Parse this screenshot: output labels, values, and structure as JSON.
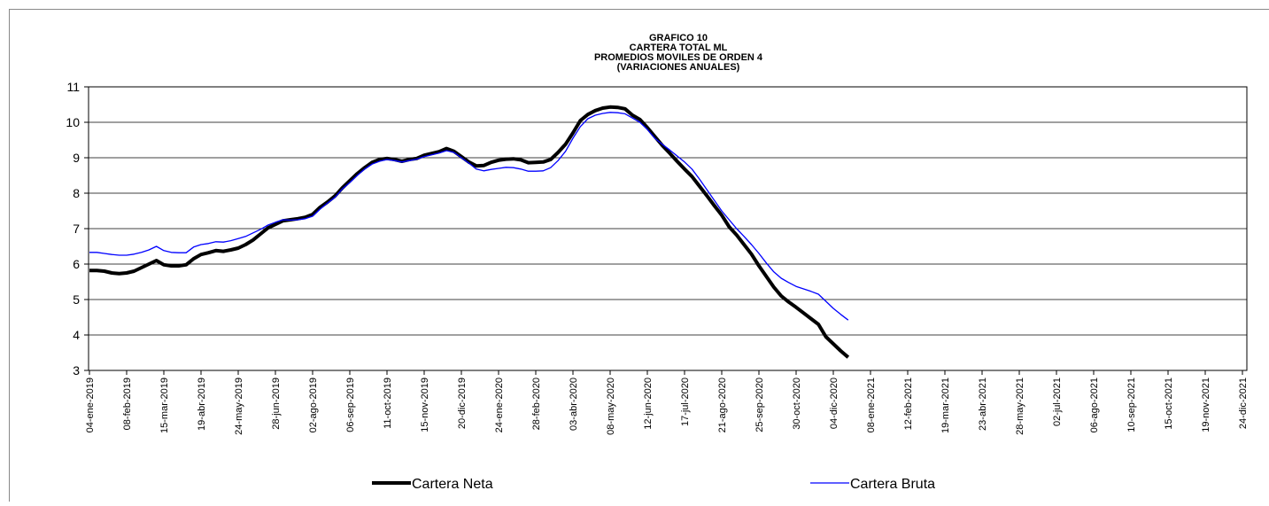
{
  "chart_data": {
    "type": "line",
    "title": [
      "GRAFICO 10",
      "CARTERA TOTAL ML",
      "PROMEDIOS MOVILES DE ORDEN 4",
      "(VARIACIONES ANUALES)"
    ],
    "categories": [
      "04-ene-2019",
      null,
      null,
      null,
      null,
      "08-feb-2019",
      null,
      null,
      null,
      null,
      "15-mar-2019",
      null,
      null,
      null,
      null,
      "19-abr-2019",
      null,
      null,
      null,
      null,
      "24-may-2019",
      null,
      null,
      null,
      null,
      "28-jun-2019",
      null,
      null,
      null,
      null,
      "02-ago-2019",
      null,
      null,
      null,
      null,
      "06-sep-2019",
      null,
      null,
      null,
      null,
      "11-oct-2019",
      null,
      null,
      null,
      null,
      "15-nov-2019",
      null,
      null,
      null,
      null,
      "20-dic-2019",
      null,
      null,
      null,
      null,
      "24-ene-2020",
      null,
      null,
      null,
      null,
      "28-feb-2020",
      null,
      null,
      null,
      null,
      "03-abr-2020",
      null,
      null,
      null,
      null,
      "08-may-2020",
      null,
      null,
      null,
      null,
      "12-jun-2020",
      null,
      null,
      null,
      null,
      "17-jul-2020",
      null,
      null,
      null,
      null,
      "21-ago-2020",
      null,
      null,
      null,
      null,
      "25-sep-2020",
      null,
      null,
      null,
      null,
      "30-oct-2020",
      null,
      null,
      null,
      null,
      "04-dic-2020",
      null,
      null,
      null,
      null,
      "08-ene-2021",
      null,
      null,
      null,
      null,
      "12-feb-2021",
      null,
      null,
      null,
      null,
      "19-mar-2021",
      null,
      null,
      null,
      null,
      "23-abr-2021",
      null,
      null,
      null,
      null,
      "28-may-2021",
      null,
      null,
      null,
      null,
      "02-jul-2021",
      null,
      null,
      null,
      null,
      "06-ago-2021",
      null,
      null,
      null,
      null,
      "10-sep-2021",
      null,
      null,
      null,
      null,
      "15-oct-2021",
      null,
      null,
      null,
      null,
      "19-nov-2021",
      null,
      null,
      null,
      null,
      "24-dic-2021"
    ],
    "series": [
      {
        "name": "Cartera Neta",
        "color": "#000000",
        "values": [
          5.82,
          5.82,
          5.8,
          5.75,
          5.73,
          5.75,
          5.8,
          5.9,
          6.0,
          6.1,
          5.98,
          5.95,
          5.95,
          5.98,
          6.15,
          6.27,
          6.32,
          6.38,
          6.36,
          6.4,
          6.45,
          6.55,
          6.68,
          6.85,
          7.02,
          7.12,
          7.22,
          7.25,
          7.28,
          7.32,
          7.4,
          7.6,
          7.75,
          7.92,
          8.15,
          8.35,
          8.55,
          8.72,
          8.87,
          8.95,
          8.98,
          8.95,
          8.9,
          8.95,
          8.98,
          9.07,
          9.12,
          9.17,
          9.26,
          9.18,
          9.03,
          8.88,
          8.77,
          8.78,
          8.87,
          8.93,
          8.96,
          8.97,
          8.94,
          8.86,
          8.87,
          8.88,
          8.95,
          9.15,
          9.38,
          9.7,
          10.05,
          10.22,
          10.33,
          10.4,
          10.43,
          10.42,
          10.38,
          10.2,
          10.08,
          9.85,
          9.6,
          9.35,
          9.13,
          8.9,
          8.68,
          8.47,
          8.2,
          7.93,
          7.65,
          7.38,
          7.05,
          6.82,
          6.55,
          6.28,
          5.95,
          5.65,
          5.35,
          5.1,
          4.93,
          4.78,
          4.62,
          4.46,
          4.3,
          3.95,
          3.75,
          3.55,
          3.37,
          null,
          null,
          null,
          null,
          null,
          null,
          null,
          null,
          null,
          null,
          null,
          null,
          null,
          null,
          null,
          null,
          null,
          null,
          null,
          null,
          null,
          null,
          null,
          null,
          null,
          null,
          null,
          null,
          null,
          null,
          null,
          null,
          null,
          null,
          null,
          null,
          null,
          null,
          null,
          null,
          null,
          null,
          null,
          null,
          null,
          null,
          null,
          null,
          null,
          null,
          null,
          null,
          null
        ]
      },
      {
        "name": "Cartera Bruta",
        "color": "#0000ff",
        "values": [
          6.33,
          6.33,
          6.3,
          6.27,
          6.25,
          6.25,
          6.28,
          6.33,
          6.4,
          6.5,
          6.38,
          6.33,
          6.32,
          6.32,
          6.48,
          6.55,
          6.58,
          6.63,
          6.62,
          6.66,
          6.72,
          6.78,
          6.88,
          6.98,
          7.1,
          7.18,
          7.25,
          7.24,
          7.25,
          7.28,
          7.35,
          7.55,
          7.72,
          7.88,
          8.12,
          8.3,
          8.5,
          8.68,
          8.82,
          8.9,
          8.95,
          8.92,
          8.88,
          8.92,
          8.96,
          9.03,
          9.08,
          9.13,
          9.2,
          9.15,
          9.0,
          8.85,
          8.68,
          8.63,
          8.67,
          8.7,
          8.73,
          8.72,
          8.68,
          8.62,
          8.62,
          8.63,
          8.72,
          8.92,
          9.18,
          9.55,
          9.88,
          10.1,
          10.2,
          10.25,
          10.28,
          10.27,
          10.24,
          10.12,
          10.0,
          9.8,
          9.55,
          9.38,
          9.22,
          9.05,
          8.88,
          8.68,
          8.4,
          8.1,
          7.8,
          7.5,
          7.25,
          7.0,
          6.78,
          6.55,
          6.3,
          6.03,
          5.78,
          5.6,
          5.48,
          5.37,
          5.3,
          5.23,
          5.15,
          4.95,
          4.75,
          4.58,
          4.42,
          null,
          null,
          null,
          null,
          null,
          null,
          null,
          null,
          null,
          null,
          null,
          null,
          null,
          null,
          null,
          null,
          null,
          null,
          null,
          null,
          null,
          null,
          null,
          null,
          null,
          null,
          null,
          null,
          null,
          null,
          null,
          null,
          null,
          null,
          null,
          null,
          null,
          null,
          null,
          null,
          null,
          null,
          null,
          null,
          null,
          null,
          null,
          null,
          null,
          null,
          null,
          null,
          null
        ]
      }
    ],
    "ylim": [
      3,
      11
    ],
    "yticks": [
      3,
      4,
      5,
      6,
      7,
      8,
      9,
      10,
      11
    ],
    "grid": true,
    "legend": "bottom"
  }
}
